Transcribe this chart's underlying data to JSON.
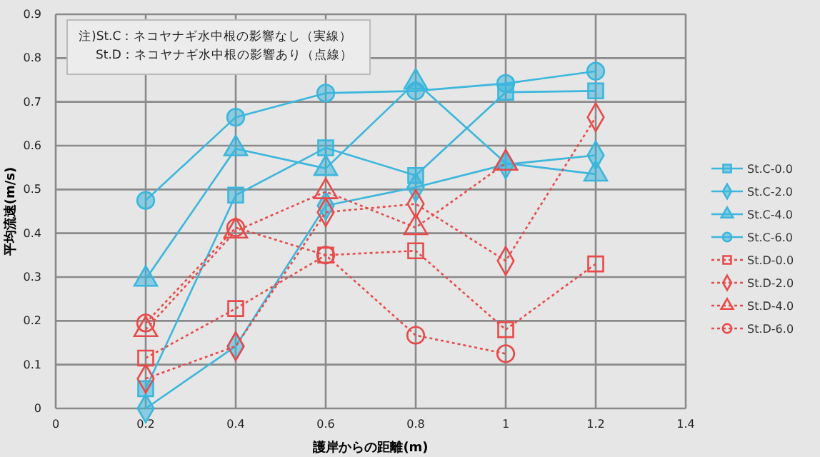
{
  "chart_data": {
    "type": "line",
    "xlabel": "護岸からの距離(m)",
    "ylabel": "平均流速(m/s)",
    "annotations": [
      "注)St.C：ネコヤナギ水中根の影響なし（実線）",
      "St.D：ネコヤナギ水中根の影響あり（点線）"
    ],
    "x": [
      0.2,
      0.4,
      0.6,
      0.8,
      1,
      1.2
    ],
    "xlim": [
      0,
      1.4
    ],
    "xticks": [
      0,
      0.2,
      0.4,
      0.6,
      0.8,
      1,
      1.2,
      1.4
    ],
    "ylim": [
      0,
      0.9
    ],
    "yticks": [
      0,
      0.1,
      0.2,
      0.3,
      0.4,
      0.5,
      0.6,
      0.7,
      0.8,
      0.9
    ],
    "grid": true,
    "legend": "right",
    "series": [
      {
        "name": "St.C-0.0",
        "color": "#3cb6dc",
        "marker": "square",
        "line_style": "solid",
        "values": [
          0.045,
          0.487,
          0.595,
          0.532,
          0.722,
          0.725
        ]
      },
      {
        "name": "St.C-2.0",
        "color": "#3cb6dc",
        "marker": "diamond",
        "line_style": "solid",
        "values": [
          0,
          0.142,
          0.463,
          0.505,
          0.557,
          0.578
        ]
      },
      {
        "name": "St.C-4.0",
        "color": "#3cb6dc",
        "marker": "triangle",
        "line_style": "solid",
        "values": [
          0.295,
          0.593,
          0.548,
          0.745,
          0.56,
          0.535
        ]
      },
      {
        "name": "St.C-6.0",
        "color": "#3cb6dc",
        "marker": "circle",
        "line_style": "solid",
        "values": [
          0.475,
          0.665,
          0.72,
          0.725,
          0.742,
          0.77
        ]
      },
      {
        "name": "St.D-0.0",
        "color": "#e84a4a",
        "marker": "square",
        "line_style": "dotted",
        "values": [
          0.115,
          0.228,
          0.35,
          0.36,
          0.18,
          0.33
        ]
      },
      {
        "name": "St.D-2.0",
        "color": "#e84a4a",
        "marker": "diamond",
        "line_style": "dotted",
        "values": [
          0.068,
          0.142,
          0.448,
          0.467,
          0.337,
          0.665
        ]
      },
      {
        "name": "St.D-4.0",
        "color": "#e84a4a",
        "marker": "triangle",
        "line_style": "dotted",
        "values": [
          0.18,
          0.405,
          0.495,
          0.413,
          0.56,
          null
        ]
      },
      {
        "name": "St.D-6.0",
        "color": "#e84a4a",
        "marker": "circle",
        "line_style": "dotted",
        "values": [
          0.195,
          0.413,
          0.35,
          0.167,
          0.125,
          null
        ]
      }
    ]
  }
}
